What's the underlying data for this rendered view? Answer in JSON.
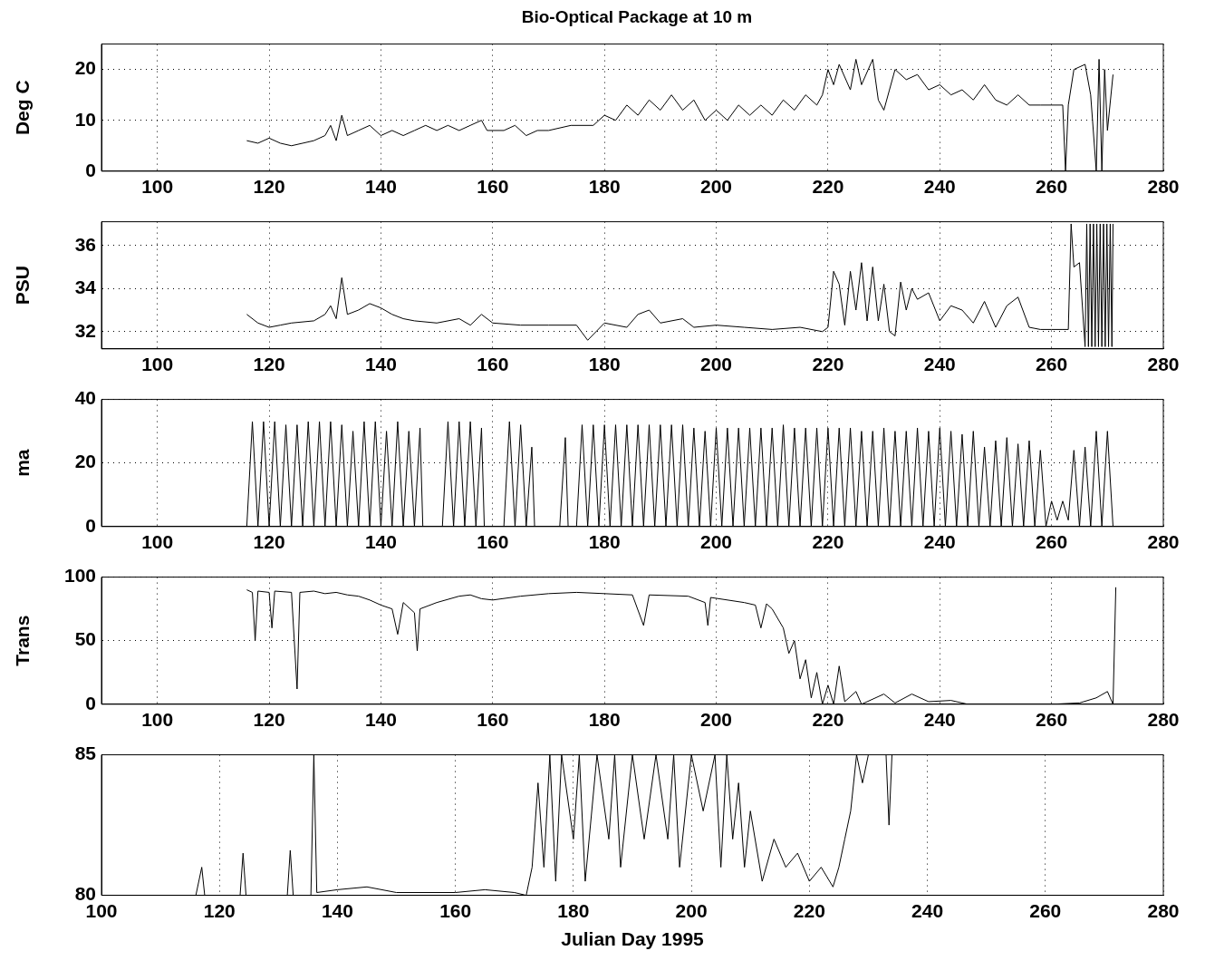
{
  "chart_data": [
    {
      "type": "line",
      "title": "Bio-Optical Package at 10 m",
      "ylabel": "Deg C",
      "grid": true,
      "xlim": [
        90,
        280
      ],
      "xticks": [
        100,
        120,
        140,
        160,
        180,
        200,
        220,
        240,
        260,
        280
      ],
      "ylim": [
        0,
        25
      ],
      "yticks": [
        0,
        10,
        20
      ],
      "series": [
        {
          "color": "#000000",
          "x": [
            116,
            118,
            120,
            122,
            124,
            126,
            128,
            130,
            131,
            132,
            133,
            134,
            136,
            138,
            140,
            142,
            144,
            146,
            148,
            150,
            152,
            154,
            156,
            158,
            159,
            162,
            164,
            166,
            168,
            170,
            174,
            178,
            180,
            182,
            184,
            186,
            188,
            190,
            192,
            194,
            196,
            198,
            200,
            202,
            204,
            206,
            208,
            210,
            212,
            214,
            216,
            218,
            219,
            220,
            221,
            222,
            224,
            225,
            226,
            228,
            229,
            230,
            231,
            232,
            234,
            236,
            238,
            240,
            242,
            244,
            246,
            248,
            250,
            252,
            254,
            256,
            258,
            260,
            262,
            262.5,
            263,
            264,
            266,
            267,
            268,
            268.5,
            269,
            269.5,
            270,
            271
          ],
          "values": [
            6,
            5.5,
            6.5,
            5.5,
            5,
            5.5,
            6,
            7,
            9,
            6,
            11,
            7,
            8,
            9,
            7,
            8,
            7,
            8,
            9,
            8,
            9,
            8,
            9,
            10,
            8,
            8,
            9,
            7,
            8,
            8,
            9,
            9,
            11,
            10,
            13,
            11,
            14,
            12,
            15,
            12,
            14,
            10,
            12,
            10,
            13,
            11,
            13,
            11,
            14,
            12,
            15,
            13,
            15,
            20,
            17,
            21,
            16,
            22,
            17,
            22,
            14,
            12,
            16,
            20,
            18,
            19,
            16,
            17,
            15,
            16,
            14,
            17,
            14,
            13,
            15,
            13,
            13,
            13,
            13,
            0,
            13,
            20,
            21,
            15,
            0,
            22,
            0,
            20,
            8,
            19
          ]
        }
      ]
    },
    {
      "type": "line",
      "ylabel": "PSU",
      "grid": true,
      "xlim": [
        90,
        280
      ],
      "xticks": [
        100,
        120,
        140,
        160,
        180,
        200,
        220,
        240,
        260,
        280
      ],
      "ylim": [
        31.2,
        37.1
      ],
      "yticks": [
        32,
        34,
        36
      ],
      "series": [
        {
          "color": "#000000",
          "x": [
            116,
            118,
            120,
            122,
            124,
            128,
            130,
            131,
            132,
            133,
            134,
            136,
            138,
            140,
            142,
            144,
            146,
            150,
            154,
            156,
            158,
            160,
            165,
            170,
            175,
            177,
            180,
            184,
            186,
            188,
            190,
            194,
            196,
            200,
            205,
            210,
            215,
            219,
            220,
            221,
            222,
            223,
            224,
            225,
            226,
            227,
            228,
            229,
            230,
            231,
            232,
            233,
            234,
            235,
            236,
            238,
            240,
            242,
            244,
            246,
            248,
            250,
            252,
            254,
            256,
            258,
            260,
            262,
            263,
            263.5,
            264,
            265,
            266,
            266.3,
            266.6,
            266.9,
            267.2,
            267.5,
            267.8,
            268.1,
            268.4,
            268.7,
            269,
            269.3,
            269.6,
            269.9,
            270.2,
            270.5,
            270.8,
            271
          ],
          "values": [
            32.8,
            32.4,
            32.2,
            32.3,
            32.4,
            32.5,
            32.8,
            33.2,
            32.6,
            34.5,
            32.8,
            33,
            33.3,
            33.1,
            32.8,
            32.6,
            32.5,
            32.4,
            32.6,
            32.3,
            32.8,
            32.4,
            32.3,
            32.3,
            32.3,
            31.6,
            32.4,
            32.2,
            32.8,
            33,
            32.4,
            32.6,
            32.2,
            32.3,
            32.2,
            32.1,
            32.2,
            32,
            32.2,
            34.8,
            34.2,
            32.3,
            34.8,
            33,
            35.2,
            32.5,
            35,
            32.5,
            34.2,
            32,
            31.8,
            34.3,
            33,
            34,
            33.5,
            33.8,
            32.5,
            33.2,
            33,
            32.4,
            33.4,
            32.2,
            33.2,
            33.6,
            32.2,
            32.1,
            32.1,
            32.1,
            32.1,
            37,
            35,
            35.2,
            31.3,
            37,
            31.3,
            37,
            31.3,
            37,
            31.3,
            37,
            31.3,
            37,
            31.3,
            37,
            31.3,
            37,
            31.3,
            37,
            31.3,
            37
          ]
        }
      ]
    },
    {
      "type": "line",
      "ylabel": "ma",
      "grid": true,
      "xlim": [
        90,
        280
      ],
      "xticks": [
        100,
        120,
        140,
        160,
        180,
        200,
        220,
        240,
        260,
        280
      ],
      "ylim": [
        0,
        40
      ],
      "yticks": [
        0,
        20,
        40
      ],
      "series": [
        {
          "color": "#000000",
          "x": [
            116,
            117,
            118,
            119,
            120,
            121,
            122,
            123,
            124,
            125,
            126,
            127,
            128,
            129,
            130,
            131,
            132,
            133,
            134,
            135,
            136,
            137,
            138,
            139,
            140,
            141,
            142,
            143,
            144,
            145,
            146,
            147,
            147.5,
            151,
            152,
            153,
            154,
            155,
            156,
            157,
            158,
            158.5,
            162,
            163,
            164,
            165,
            166,
            167,
            167.5,
            172,
            173,
            173.5,
            175,
            176,
            177,
            178,
            179,
            180,
            181,
            182,
            183,
            184,
            185,
            186,
            187,
            188,
            189,
            190,
            191,
            192,
            193,
            194,
            195,
            196,
            197,
            198,
            199,
            200,
            201,
            202,
            203,
            204,
            205,
            206,
            207,
            208,
            209,
            210,
            211,
            212,
            213,
            214,
            215,
            216,
            217,
            218,
            219,
            220,
            221,
            222,
            223,
            224,
            225,
            226,
            227,
            228,
            229,
            230,
            231,
            232,
            233,
            234,
            235,
            236,
            237,
            238,
            239,
            240,
            241,
            242,
            243,
            244,
            245,
            246,
            247,
            248,
            249,
            250,
            251,
            252,
            253,
            254,
            255,
            256,
            257,
            258,
            259,
            260,
            261,
            262,
            263,
            264,
            265,
            266,
            267,
            268,
            269,
            270,
            271
          ],
          "values": [
            0,
            33,
            0,
            33,
            0,
            33,
            0,
            32,
            0,
            32,
            0,
            33,
            0,
            33,
            0,
            33,
            0,
            32,
            0,
            30,
            0,
            33,
            0,
            33,
            0,
            30,
            0,
            33,
            0,
            30,
            0,
            31,
            0,
            0,
            33,
            0,
            33,
            0,
            33,
            0,
            31,
            0,
            0,
            33,
            0,
            32,
            0,
            25,
            0,
            0,
            28,
            0,
            0,
            32,
            0,
            32,
            0,
            32,
            0,
            32,
            0,
            32,
            0,
            32,
            0,
            32,
            0,
            32,
            0,
            32,
            0,
            32,
            0,
            31,
            0,
            30,
            0,
            31,
            0,
            31,
            0,
            31,
            0,
            31,
            0,
            31,
            0,
            31,
            0,
            32,
            0,
            31,
            0,
            31,
            0,
            31,
            0,
            31,
            0,
            31,
            0,
            31,
            0,
            30,
            0,
            30,
            0,
            31,
            0,
            30,
            0,
            30,
            0,
            31,
            0,
            30,
            0,
            31,
            0,
            30,
            0,
            29,
            0,
            30,
            0,
            25,
            0,
            27,
            0,
            28,
            0,
            26,
            0,
            27,
            0,
            24,
            0,
            8,
            2,
            8,
            2,
            24,
            0,
            25,
            0,
            30,
            0,
            30,
            0
          ]
        }
      ]
    },
    {
      "type": "line",
      "ylabel": "Trans",
      "grid": true,
      "xlim": [
        90,
        280
      ],
      "xticks": [
        100,
        120,
        140,
        160,
        180,
        200,
        220,
        240,
        260,
        280
      ],
      "ylim": [
        0,
        100
      ],
      "yticks": [
        0,
        50,
        100
      ],
      "series": [
        {
          "color": "#000000",
          "x": [
            116,
            117,
            117.5,
            118,
            120,
            120.5,
            121,
            124,
            125,
            125.5,
            128,
            130,
            132,
            134,
            136,
            138,
            140,
            142,
            143,
            144,
            146,
            146.5,
            147,
            150,
            154,
            156,
            158,
            160,
            165,
            170,
            175,
            180,
            185,
            187,
            188,
            195,
            198,
            198.5,
            199,
            205,
            207,
            208,
            209,
            210,
            212,
            213,
            214,
            215,
            216,
            217,
            218,
            219,
            220,
            221,
            222,
            223,
            225,
            226,
            230,
            232,
            235,
            238,
            242,
            245,
            250,
            260,
            265,
            268,
            270,
            271,
            271.5
          ],
          "values": [
            90,
            88,
            50,
            89,
            88,
            60,
            89,
            88,
            12,
            88,
            89,
            87,
            88,
            86,
            85,
            82,
            78,
            75,
            55,
            80,
            72,
            42,
            75,
            80,
            85,
            86,
            83,
            82,
            85,
            87,
            88,
            87,
            86,
            62,
            86,
            85,
            80,
            62,
            84,
            80,
            78,
            60,
            79,
            75,
            60,
            40,
            50,
            20,
            35,
            5,
            25,
            0,
            15,
            0,
            30,
            2,
            10,
            0,
            8,
            1,
            8,
            2,
            3,
            0,
            0,
            0,
            1,
            5,
            10,
            0,
            92
          ]
        }
      ]
    },
    {
      "type": "line",
      "xlabel": "Julian Day 1995",
      "grid": "x",
      "xlim": [
        100,
        280
      ],
      "xticks": [
        100,
        120,
        140,
        160,
        180,
        200,
        220,
        240,
        260,
        280
      ],
      "ylim": [
        80,
        85
      ],
      "yticks": [
        80,
        85
      ],
      "series": [
        {
          "color": "#000000",
          "x": [
            116,
            117,
            117.5,
            123.5,
            124,
            124.5,
            131.5,
            132,
            132.5,
            135.5,
            136,
            136.5,
            140,
            145,
            150,
            160,
            165,
            170,
            172,
            173,
            174,
            175,
            176,
            177,
            178,
            180,
            181,
            182,
            184,
            186,
            187,
            188,
            190,
            192,
            194,
            196,
            197,
            198,
            200,
            202,
            204,
            205,
            206,
            207,
            208,
            209,
            210,
            212,
            214,
            216,
            218,
            220,
            222,
            224,
            225,
            226,
            227,
            228,
            229,
            230,
            231,
            233,
            233.5,
            234
          ],
          "values": [
            80,
            81,
            80,
            80,
            81.5,
            80,
            80,
            81.6,
            80,
            80,
            85,
            80.1,
            80.2,
            80.3,
            80.1,
            80.1,
            80.2,
            80.1,
            80,
            81,
            84,
            81,
            85,
            80.5,
            85,
            82,
            85,
            80.5,
            85,
            82,
            85,
            81,
            85,
            82,
            85,
            82,
            85,
            81,
            85,
            83,
            85,
            81,
            85,
            82,
            84,
            81,
            83,
            80.5,
            82,
            81,
            81.5,
            80.5,
            81,
            80.3,
            81,
            82,
            83,
            85,
            84,
            85,
            null,
            85,
            82.5,
            85
          ]
        }
      ]
    }
  ]
}
